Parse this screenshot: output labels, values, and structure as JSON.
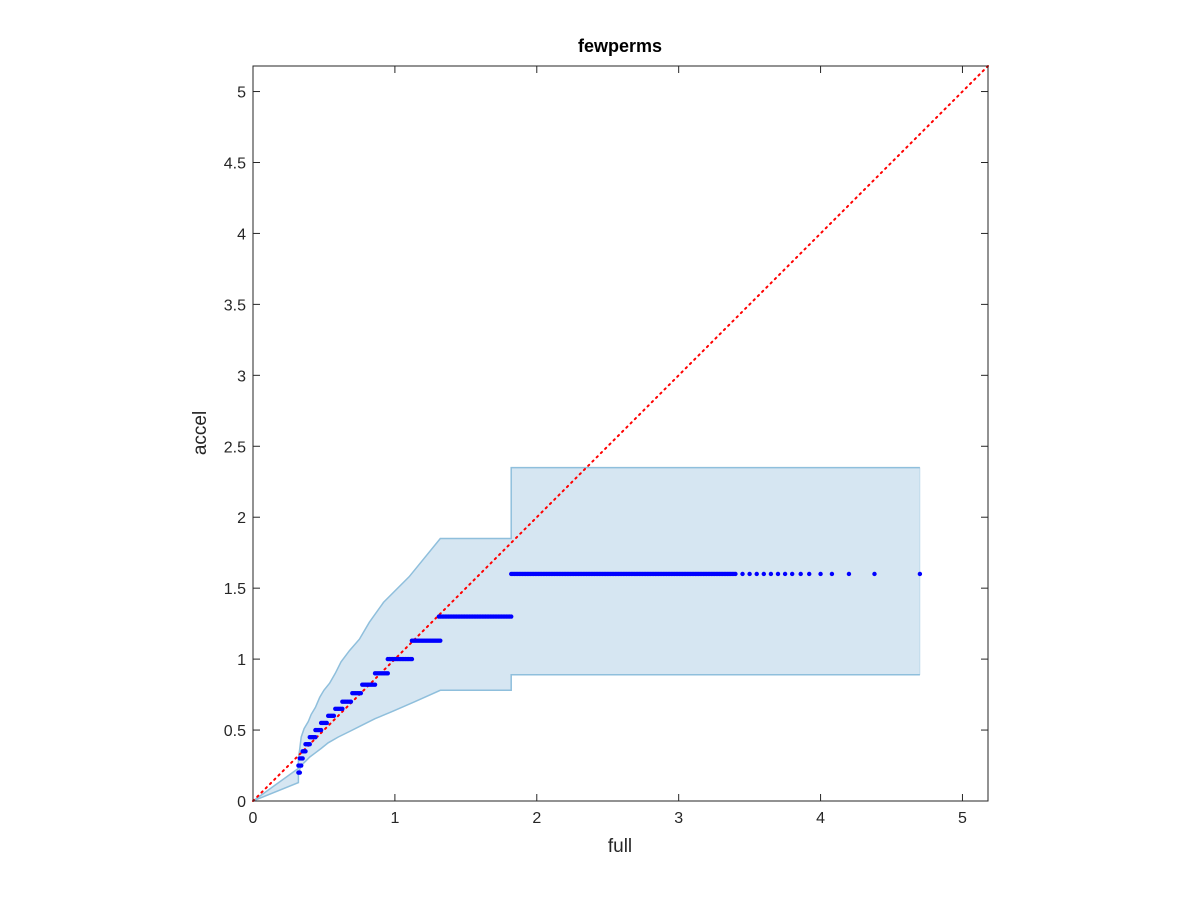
{
  "chart_data": {
    "type": "scatter",
    "title": "fewperms",
    "xlabel": "full",
    "ylabel": "accel",
    "xlim": [
      0,
      5.18
    ],
    "ylim": [
      0,
      5.18
    ],
    "xticks": [
      0,
      1,
      2,
      3,
      4,
      5
    ],
    "yticks": [
      0,
      0.5,
      1,
      1.5,
      2,
      2.5,
      3,
      3.5,
      4,
      4.5,
      5
    ],
    "xtick_labels": [
      "0",
      "1",
      "2",
      "3",
      "4",
      "5"
    ],
    "ytick_labels": [
      "0",
      "0.5",
      "1",
      "1.5",
      "2",
      "2.5",
      "3",
      "3.5",
      "4",
      "4.5",
      "5"
    ],
    "grid": false,
    "reference_line": {
      "type": "identity",
      "style": "dotted",
      "color": "#ff0000"
    },
    "band": {
      "color": "#d6e6f2",
      "edge_color": "#8fbfdc",
      "upper": [
        [
          0,
          0
        ],
        [
          0.32,
          0.23
        ],
        [
          0.32,
          0.3
        ],
        [
          0.33,
          0.37
        ],
        [
          0.34,
          0.45
        ],
        [
          0.36,
          0.51
        ],
        [
          0.39,
          0.56
        ],
        [
          0.41,
          0.61
        ],
        [
          0.44,
          0.66
        ],
        [
          0.47,
          0.73
        ],
        [
          0.5,
          0.78
        ],
        [
          0.54,
          0.83
        ],
        [
          0.58,
          0.9
        ],
        [
          0.62,
          0.98
        ],
        [
          0.68,
          1.06
        ],
        [
          0.75,
          1.14
        ],
        [
          0.82,
          1.26
        ],
        [
          0.92,
          1.4
        ],
        [
          1.1,
          1.58
        ],
        [
          1.32,
          1.85
        ],
        [
          1.82,
          1.85
        ],
        [
          1.82,
          2.35
        ],
        [
          4.7,
          2.35
        ]
      ],
      "lower": [
        [
          0,
          0
        ],
        [
          0.32,
          0.13
        ],
        [
          0.32,
          0.2
        ],
        [
          0.34,
          0.25
        ],
        [
          0.37,
          0.28
        ],
        [
          0.4,
          0.31
        ],
        [
          0.44,
          0.34
        ],
        [
          0.48,
          0.37
        ],
        [
          0.53,
          0.41
        ],
        [
          0.6,
          0.45
        ],
        [
          0.68,
          0.49
        ],
        [
          0.76,
          0.53
        ],
        [
          0.86,
          0.58
        ],
        [
          0.98,
          0.63
        ],
        [
          1.14,
          0.7
        ],
        [
          1.32,
          0.78
        ],
        [
          1.82,
          0.78
        ],
        [
          1.82,
          0.89
        ],
        [
          4.7,
          0.89
        ]
      ]
    },
    "series": [
      {
        "color": "#0000ff",
        "clusters": [
          {
            "y": 0.2,
            "x": [
              0.32,
              0.33
            ]
          },
          {
            "y": 0.25,
            "x": [
              0.32,
              0.34
            ]
          },
          {
            "y": 0.3,
            "x": [
              0.33,
              0.35
            ]
          },
          {
            "y": 0.35,
            "x": [
              0.35,
              0.37
            ]
          },
          {
            "y": 0.4,
            "x": [
              0.37,
              0.4
            ]
          },
          {
            "y": 0.45,
            "x": [
              0.4,
              0.44
            ]
          },
          {
            "y": 0.5,
            "x": [
              0.44,
              0.48
            ]
          },
          {
            "y": 0.55,
            "x": [
              0.48,
              0.52
            ]
          },
          {
            "y": 0.6,
            "x": [
              0.53,
              0.57
            ]
          },
          {
            "y": 0.65,
            "x": [
              0.58,
              0.63
            ]
          },
          {
            "y": 0.7,
            "x": [
              0.63,
              0.69
            ]
          },
          {
            "y": 0.76,
            "x": [
              0.7,
              0.76
            ]
          },
          {
            "y": 0.82,
            "x": [
              0.77,
              0.86
            ]
          },
          {
            "y": 0.9,
            "x": [
              0.86,
              0.95
            ]
          },
          {
            "y": 1.0,
            "x": [
              0.95,
              1.12
            ]
          },
          {
            "y": 1.13,
            "x": [
              1.12,
              1.32
            ]
          },
          {
            "y": 1.3,
            "x": [
              1.31,
              1.82
            ]
          },
          {
            "y": 1.6,
            "x": [
              1.82,
              3.4
            ]
          }
        ],
        "sparse_points": [
          [
            3.45,
            1.6
          ],
          [
            3.5,
            1.6
          ],
          [
            3.55,
            1.6
          ],
          [
            3.6,
            1.6
          ],
          [
            3.65,
            1.6
          ],
          [
            3.7,
            1.6
          ],
          [
            3.75,
            1.6
          ],
          [
            3.8,
            1.6
          ],
          [
            3.86,
            1.6
          ],
          [
            3.92,
            1.6
          ],
          [
            4.0,
            1.6
          ],
          [
            4.08,
            1.6
          ],
          [
            4.2,
            1.6
          ],
          [
            4.38,
            1.6
          ],
          [
            4.7,
            1.6
          ]
        ]
      }
    ]
  }
}
